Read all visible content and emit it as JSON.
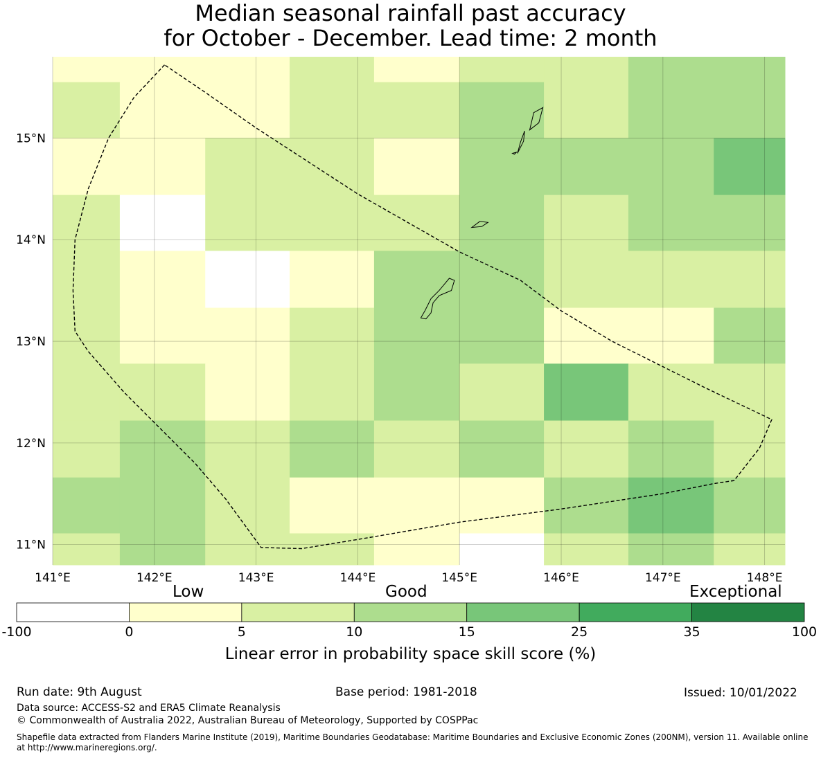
{
  "title": {
    "line1": "Median seasonal rainfall past accuracy",
    "line2": "for October - December. Lead time: 2 month"
  },
  "map": {
    "lon_range": [
      141.0,
      148.2
    ],
    "lat_range": [
      10.8,
      15.8
    ],
    "lon_ticks": [
      141,
      142,
      143,
      144,
      145,
      146,
      147,
      148
    ],
    "lon_tick_labels": [
      "141°E",
      "142°E",
      "143°E",
      "144°E",
      "145°E",
      "146°E",
      "147°E",
      "148°E"
    ],
    "lat_ticks": [
      11,
      12,
      13,
      14,
      15
    ],
    "lat_tick_labels": [
      "11°N",
      "12°N",
      "13°N",
      "14°N",
      "15°N"
    ],
    "grid_lines": true,
    "cell_lon_edges": [
      141.0,
      141.66,
      142.5,
      143.33,
      144.16,
      145.0,
      145.83,
      146.66,
      147.5,
      148.2
    ],
    "cell_lat_edges": [
      15.8,
      15.55,
      15.0,
      14.44,
      13.89,
      13.33,
      12.78,
      12.22,
      11.66,
      11.11,
      10.8
    ],
    "category_colors": [
      "#ffffff",
      "#ffffcc",
      "#d9f0a3",
      "#addd8e",
      "#78c679",
      "#41ab5d",
      "#238443"
    ],
    "cells": [
      [
        1,
        1,
        1,
        2,
        1,
        2,
        2,
        3,
        3
      ],
      [
        2,
        1,
        1,
        2,
        2,
        3,
        2,
        3,
        3
      ],
      [
        1,
        1,
        2,
        2,
        1,
        3,
        3,
        3,
        4
      ],
      [
        2,
        0,
        2,
        2,
        2,
        3,
        2,
        3,
        3
      ],
      [
        2,
        1,
        0,
        1,
        3,
        3,
        2,
        2,
        2
      ],
      [
        2,
        1,
        1,
        2,
        3,
        3,
        1,
        1,
        3
      ],
      [
        2,
        2,
        1,
        2,
        3,
        2,
        4,
        2,
        2
      ],
      [
        2,
        3,
        2,
        3,
        2,
        3,
        2,
        3,
        2
      ],
      [
        3,
        3,
        2,
        1,
        1,
        1,
        3,
        4,
        3
      ],
      [
        2,
        3,
        2,
        2,
        1,
        0,
        2,
        3,
        2
      ]
    ],
    "eez_boundary": [
      [
        142.1,
        15.72
      ],
      [
        141.8,
        15.4
      ],
      [
        141.55,
        15.0
      ],
      [
        141.35,
        14.5
      ],
      [
        141.22,
        14.0
      ],
      [
        141.2,
        13.5
      ],
      [
        141.22,
        13.1
      ],
      [
        141.35,
        12.9
      ],
      [
        141.7,
        12.5
      ],
      [
        142.0,
        12.2
      ],
      [
        142.4,
        11.8
      ],
      [
        142.7,
        11.45
      ],
      [
        143.05,
        10.97
      ],
      [
        143.45,
        10.96
      ],
      [
        144.0,
        11.05
      ],
      [
        145.0,
        11.22
      ],
      [
        146.0,
        11.35
      ],
      [
        147.0,
        11.5
      ],
      [
        147.5,
        11.6
      ],
      [
        147.7,
        11.63
      ],
      [
        147.95,
        11.95
      ],
      [
        148.07,
        12.23
      ],
      [
        147.4,
        12.55
      ],
      [
        146.5,
        13.0
      ],
      [
        146.0,
        13.3
      ],
      [
        145.6,
        13.6
      ],
      [
        145.0,
        13.88
      ],
      [
        144.0,
        14.45
      ],
      [
        143.0,
        15.1
      ],
      [
        142.5,
        15.45
      ],
      [
        142.1,
        15.72
      ]
    ],
    "islands": [
      {
        "name": "guam",
        "points": [
          [
            144.62,
            13.23
          ],
          [
            144.66,
            13.3
          ],
          [
            144.72,
            13.42
          ],
          [
            144.8,
            13.5
          ],
          [
            144.9,
            13.62
          ],
          [
            144.95,
            13.6
          ],
          [
            144.92,
            13.5
          ],
          [
            144.8,
            13.45
          ],
          [
            144.74,
            13.38
          ],
          [
            144.72,
            13.28
          ],
          [
            144.67,
            13.22
          ],
          [
            144.62,
            13.23
          ]
        ]
      },
      {
        "name": "rota",
        "points": [
          [
            145.12,
            14.12
          ],
          [
            145.2,
            14.18
          ],
          [
            145.28,
            14.17
          ],
          [
            145.22,
            14.13
          ],
          [
            145.12,
            14.12
          ]
        ]
      },
      {
        "name": "tinian",
        "points": [
          [
            145.57,
            14.85
          ],
          [
            145.63,
            14.97
          ],
          [
            145.64,
            15.07
          ],
          [
            145.6,
            14.96
          ],
          [
            145.57,
            14.85
          ]
        ]
      },
      {
        "name": "saipan",
        "points": [
          [
            145.69,
            15.08
          ],
          [
            145.73,
            15.25
          ],
          [
            145.82,
            15.3
          ],
          [
            145.78,
            15.15
          ],
          [
            145.69,
            15.08
          ]
        ]
      },
      {
        "name": "aguijan",
        "points": [
          [
            145.52,
            14.85
          ],
          [
            145.56,
            14.86
          ],
          [
            145.54,
            14.84
          ],
          [
            145.52,
            14.85
          ]
        ]
      }
    ]
  },
  "colorbar": {
    "labels": {
      "low": "Low",
      "good": "Good",
      "exceptional": "Exceptional"
    },
    "bounds": [
      "-100",
      "0",
      "5",
      "10",
      "15",
      "25",
      "35",
      "100"
    ],
    "colors": [
      "#ffffff",
      "#ffffcc",
      "#d9f0a3",
      "#addd8e",
      "#78c679",
      "#41ab5d",
      "#238443"
    ],
    "xlabel": "Linear error in probability space skill score (%)"
  },
  "footer": {
    "run_date": "Run date: 9th August",
    "base_period": "Base period: 1981-2018",
    "issued": "Issued: 10/01/2022",
    "data_source": "Data source: ACCESS-S2 and ERA5 Climate Reanalysis",
    "copyright": "© Commonwealth of Australia 2022, Australian Bureau of Meteorology, Supported by COSPPac",
    "shapefile": "Shapefile data extracted from Flanders Marine Institute (2019), Maritime Boundaries Geodatabase: Maritime Boundaries and Exclusive Economic Zones (200NM), version 11. Available online at http://www.marineregions.org/."
  }
}
